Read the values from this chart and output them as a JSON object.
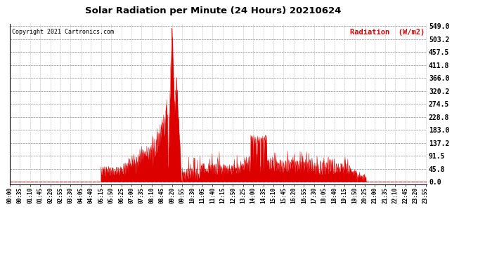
{
  "title": "Solar Radiation per Minute (24 Hours) 20210624",
  "copyright_text": "Copyright 2021 Cartronics.com",
  "ylabel": "Radiation  (W/m2)",
  "background_color": "#ffffff",
  "fill_color": "#dd0000",
  "ylabel_color": "#dd0000",
  "title_color": "#000000",
  "yticks": [
    0.0,
    45.8,
    91.5,
    137.2,
    183.0,
    228.8,
    274.5,
    320.2,
    366.0,
    411.8,
    457.5,
    503.2,
    549.0
  ],
  "ymax": 549.0,
  "ymin": 0.0,
  "xtick_labels": [
    "00:00",
    "00:35",
    "01:10",
    "01:45",
    "02:20",
    "02:55",
    "03:30",
    "04:05",
    "04:40",
    "05:15",
    "05:50",
    "06:25",
    "07:00",
    "07:35",
    "08:10",
    "08:45",
    "09:20",
    "09:55",
    "10:30",
    "11:05",
    "11:40",
    "12:15",
    "12:50",
    "13:25",
    "14:00",
    "14:35",
    "15:10",
    "15:45",
    "16:20",
    "16:55",
    "17:30",
    "18:05",
    "18:40",
    "19:15",
    "19:50",
    "20:25",
    "21:00",
    "21:35",
    "22:10",
    "22:45",
    "23:20",
    "23:55"
  ],
  "grid_color": "#bbbbbb",
  "hgrid_color": "#888888"
}
